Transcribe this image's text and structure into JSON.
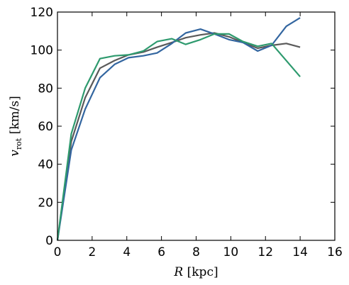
{
  "chart_data": {
    "type": "line",
    "title": "",
    "xlabel": "R [kpc]",
    "xlabel_var": "R",
    "xlabel_unit": " [kpc]",
    "ylabel": "v_rot [km/s]",
    "ylabel_var": "v",
    "ylabel_sub": "rot",
    "ylabel_unit": " [km/s]",
    "xlim": [
      0,
      16
    ],
    "ylim": [
      0,
      120
    ],
    "xticks": [
      0,
      2,
      4,
      6,
      8,
      10,
      12,
      14,
      16
    ],
    "yticks": [
      0,
      20,
      40,
      60,
      80,
      100,
      120
    ],
    "grid": false,
    "legend": "none",
    "series": [
      {
        "color": "#5a5a5a",
        "x": [
          0,
          0.8,
          1.6,
          2.45,
          3.3,
          4.1,
          4.95,
          5.75,
          6.6,
          7.4,
          8.25,
          9.05,
          9.9,
          10.7,
          11.55,
          12.35,
          13.2,
          14.0
        ],
        "y": [
          0,
          52,
          75,
          90.5,
          94.5,
          97.5,
          99,
          101.5,
          104,
          106.5,
          108,
          109,
          107,
          104,
          101,
          102.5,
          103.5,
          101.5
        ]
      },
      {
        "color": "#3366a0",
        "x": [
          0,
          0.8,
          1.6,
          2.45,
          3.3,
          4.1,
          4.95,
          5.75,
          6.6,
          7.4,
          8.25,
          9.05,
          9.9,
          10.7,
          11.55,
          12.35,
          13.2,
          14.0
        ],
        "y": [
          0,
          47.5,
          69,
          85.5,
          92.5,
          96,
          97,
          98.5,
          103.5,
          109,
          111,
          108.5,
          105.5,
          104,
          99.5,
          102.5,
          112.5,
          117
        ]
      },
      {
        "color": "#2e9a6e",
        "x": [
          0,
          0.8,
          1.6,
          2.45,
          3.3,
          4.1,
          4.95,
          5.75,
          6.6,
          7.4,
          8.25,
          9.05,
          9.9,
          10.7,
          11.55,
          12.35,
          14.0
        ],
        "y": [
          0,
          56,
          80,
          95.5,
          97,
          97.5,
          99.5,
          104.5,
          106,
          103,
          105.5,
          108.5,
          108.5,
          104.5,
          102,
          103.5,
          86
        ]
      }
    ]
  }
}
